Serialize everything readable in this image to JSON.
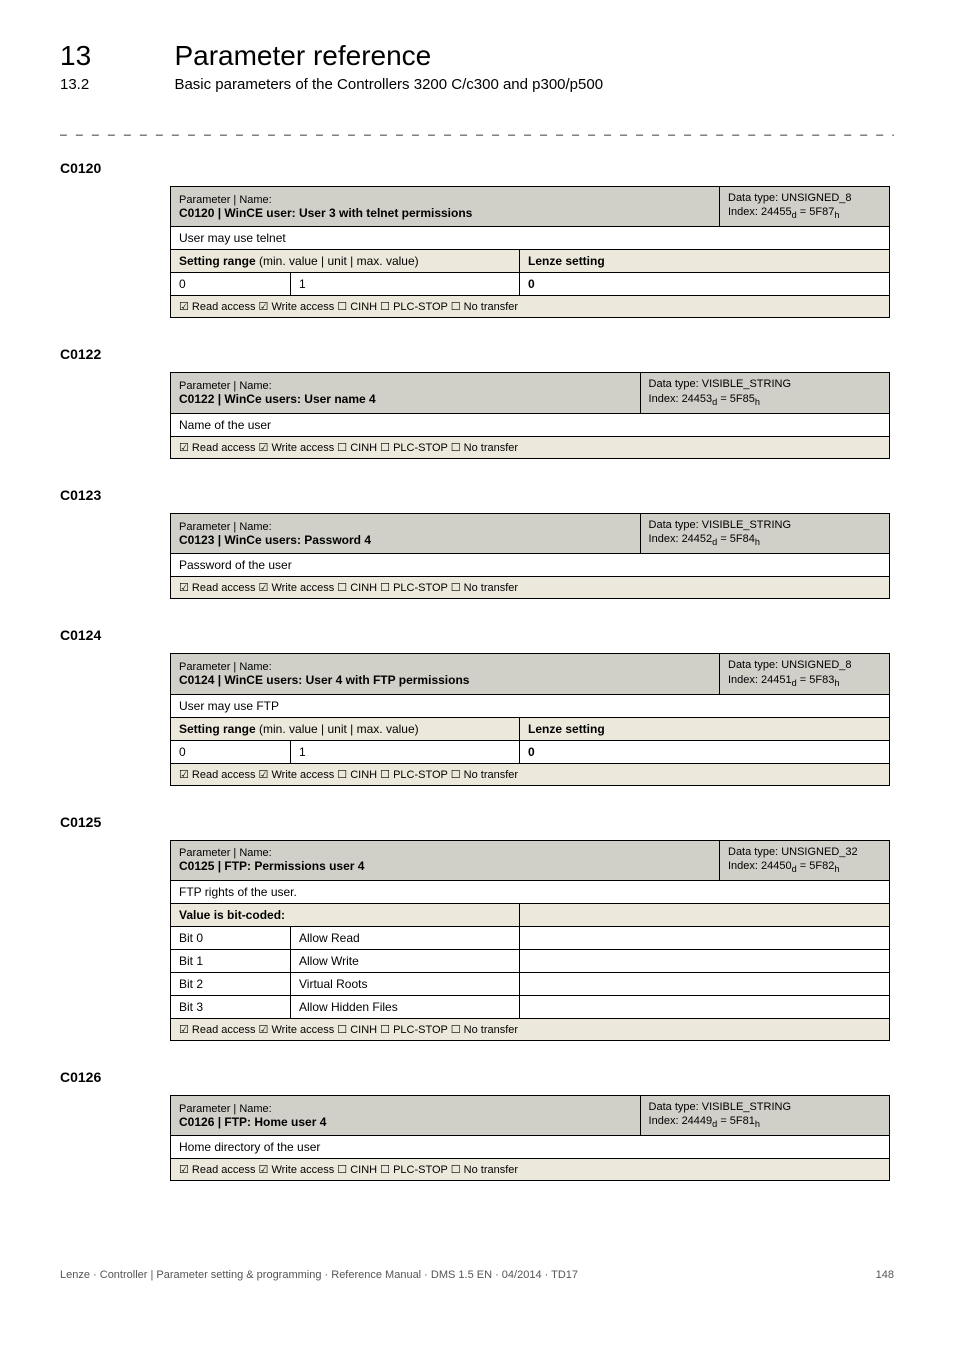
{
  "head": {
    "chapter_num": "13",
    "chapter_title": "Parameter reference",
    "section_num": "13.2",
    "section_title": "Basic parameters of the Controllers 3200 C/c300 and p300/p500"
  },
  "labels": {
    "param_name": "Parameter | Name:",
    "setting_range": "Setting range",
    "setting_range_sub": " (min. value | unit | max. value)",
    "lenze_setting": "Lenze setting",
    "value_bit_coded": "Value is bit-coded:",
    "access_line": "☑ Read access   ☑ Write access   ☐ CINH   ☐ PLC-STOP   ☐ No transfer"
  },
  "params": [
    {
      "code": "C0120",
      "title": "C0120 | WinCE user: User 3 with telnet permissions",
      "dtype": "Data type: UNSIGNED_8",
      "index": "Index: 24455d = 5F87h",
      "desc": "User may use telnet",
      "kind": "range",
      "range_min": "0",
      "range_max": "1",
      "range_default": "0"
    },
    {
      "code": "C0122",
      "title": "C0122 | WinCe users: User name 4",
      "dtype": "Data type: VISIBLE_STRING",
      "index": "Index: 24453d = 5F85h",
      "desc": "Name of the user",
      "kind": "simple"
    },
    {
      "code": "C0123",
      "title": "C0123 | WinCe users: Password 4",
      "dtype": "Data type: VISIBLE_STRING",
      "index": "Index: 24452d = 5F84h",
      "desc": "Password of the user",
      "kind": "simple"
    },
    {
      "code": "C0124",
      "title": "C0124 | WinCE users: User 4 with FTP permissions",
      "dtype": "Data type: UNSIGNED_8",
      "index": "Index: 24451d = 5F83h",
      "desc": "User may use FTP",
      "kind": "range",
      "range_min": "0",
      "range_max": "1",
      "range_default": "0"
    },
    {
      "code": "C0125",
      "title": "C0125 | FTP: Permissions user 4",
      "dtype": "Data type: UNSIGNED_32",
      "index": "Index: 24450d = 5F82h",
      "desc": "FTP rights of the user.",
      "kind": "bits",
      "bits": [
        {
          "bit": "Bit 0",
          "label": "Allow Read"
        },
        {
          "bit": "Bit 1",
          "label": "Allow Write"
        },
        {
          "bit": "Bit 2",
          "label": "Virtual Roots"
        },
        {
          "bit": "Bit 3",
          "label": "Allow Hidden Files"
        }
      ]
    },
    {
      "code": "C0126",
      "title": "C0126 | FTP: Home user 4",
      "dtype": "Data type: VISIBLE_STRING",
      "index": "Index: 24449d = 5F81h",
      "desc": "Home directory of the user",
      "kind": "simple"
    }
  ],
  "footer": {
    "text": "Lenze · Controller | Parameter setting & programming · Reference Manual · DMS 1.5 EN · 04/2014 · TD17",
    "page": "148"
  },
  "colors": {
    "header_bg": "#d0cfc8",
    "subhead_bg": "#ece9dc",
    "border": "#000000",
    "text": "#000000",
    "footer_text": "#555555"
  }
}
